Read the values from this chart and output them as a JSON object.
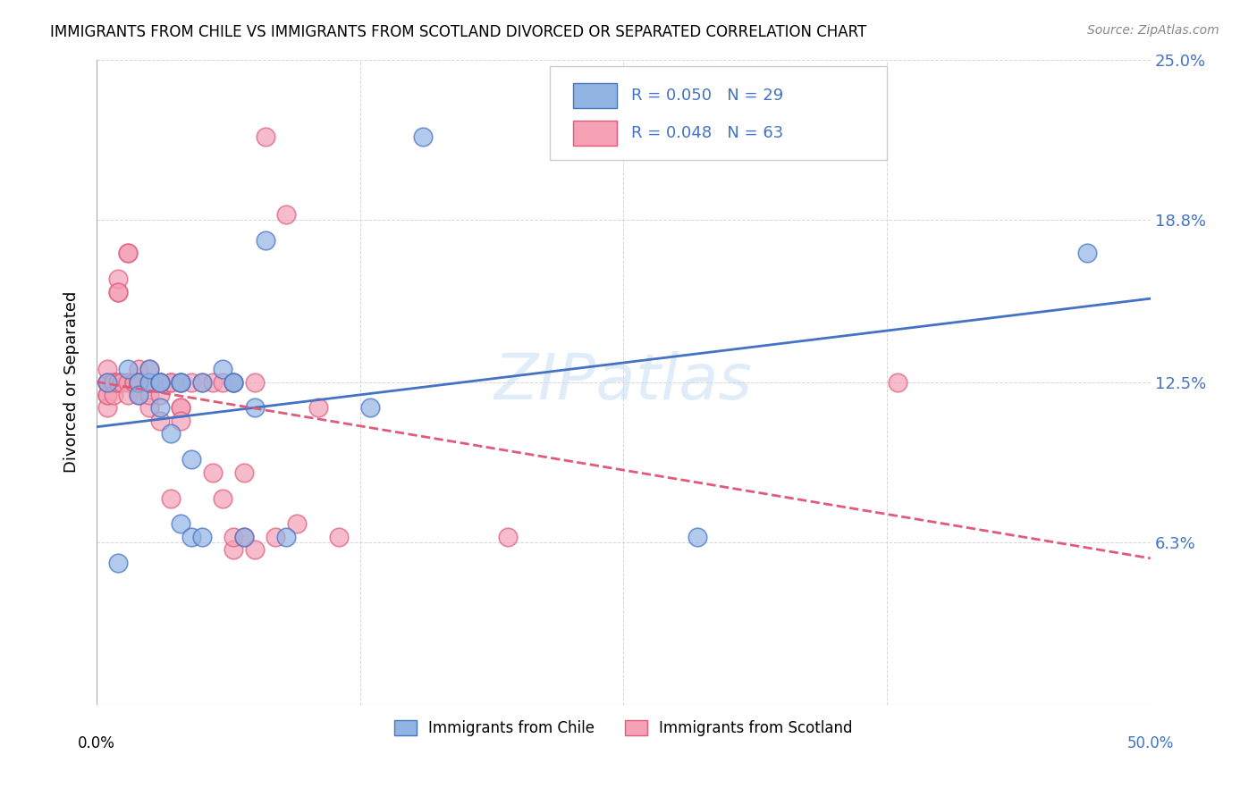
{
  "title": "IMMIGRANTS FROM CHILE VS IMMIGRANTS FROM SCOTLAND DIVORCED OR SEPARATED CORRELATION CHART",
  "source": "Source: ZipAtlas.com",
  "ylabel": "Divorced or Separated",
  "xlim": [
    0.0,
    0.5
  ],
  "ylim": [
    0.0,
    0.25
  ],
  "ytick_vals": [
    0.0,
    0.063,
    0.125,
    0.188,
    0.25
  ],
  "ytick_labels": [
    "",
    "6.3%",
    "12.5%",
    "18.8%",
    "25.0%"
  ],
  "legend_r_chile": "0.050",
  "legend_n_chile": "29",
  "legend_r_scotland": "0.048",
  "legend_n_scotland": "63",
  "chile_color": "#92b4e3",
  "scotland_color": "#f4a0b5",
  "chile_line_color": "#4472c4",
  "scotland_line_color": "#e05a7a",
  "watermark": "ZIPatlas",
  "chile_x": [
    0.005,
    0.01,
    0.015,
    0.02,
    0.02,
    0.025,
    0.025,
    0.03,
    0.03,
    0.03,
    0.035,
    0.04,
    0.04,
    0.04,
    0.045,
    0.045,
    0.05,
    0.05,
    0.06,
    0.065,
    0.065,
    0.07,
    0.075,
    0.08,
    0.09,
    0.13,
    0.155,
    0.285,
    0.47
  ],
  "chile_y": [
    0.125,
    0.055,
    0.13,
    0.125,
    0.12,
    0.125,
    0.13,
    0.125,
    0.115,
    0.125,
    0.105,
    0.125,
    0.125,
    0.07,
    0.095,
    0.065,
    0.065,
    0.125,
    0.13,
    0.125,
    0.125,
    0.065,
    0.115,
    0.18,
    0.065,
    0.115,
    0.22,
    0.065,
    0.175
  ],
  "scotland_x": [
    0.005,
    0.005,
    0.005,
    0.005,
    0.005,
    0.005,
    0.008,
    0.008,
    0.008,
    0.01,
    0.01,
    0.01,
    0.01,
    0.01,
    0.012,
    0.015,
    0.015,
    0.015,
    0.015,
    0.018,
    0.018,
    0.02,
    0.02,
    0.02,
    0.02,
    0.02,
    0.025,
    0.025,
    0.025,
    0.025,
    0.025,
    0.03,
    0.03,
    0.03,
    0.03,
    0.035,
    0.035,
    0.035,
    0.04,
    0.04,
    0.04,
    0.04,
    0.045,
    0.05,
    0.055,
    0.055,
    0.06,
    0.06,
    0.065,
    0.065,
    0.065,
    0.07,
    0.07,
    0.075,
    0.075,
    0.08,
    0.085,
    0.09,
    0.095,
    0.105,
    0.115,
    0.195,
    0.38
  ],
  "scotland_y": [
    0.125,
    0.12,
    0.115,
    0.12,
    0.125,
    0.13,
    0.125,
    0.125,
    0.12,
    0.125,
    0.16,
    0.165,
    0.16,
    0.125,
    0.125,
    0.175,
    0.175,
    0.125,
    0.12,
    0.125,
    0.125,
    0.12,
    0.125,
    0.13,
    0.125,
    0.125,
    0.125,
    0.115,
    0.12,
    0.13,
    0.125,
    0.125,
    0.12,
    0.11,
    0.125,
    0.125,
    0.08,
    0.125,
    0.115,
    0.125,
    0.115,
    0.11,
    0.125,
    0.125,
    0.125,
    0.09,
    0.08,
    0.125,
    0.06,
    0.065,
    0.125,
    0.09,
    0.065,
    0.125,
    0.06,
    0.22,
    0.065,
    0.19,
    0.07,
    0.115,
    0.065,
    0.065,
    0.125
  ]
}
